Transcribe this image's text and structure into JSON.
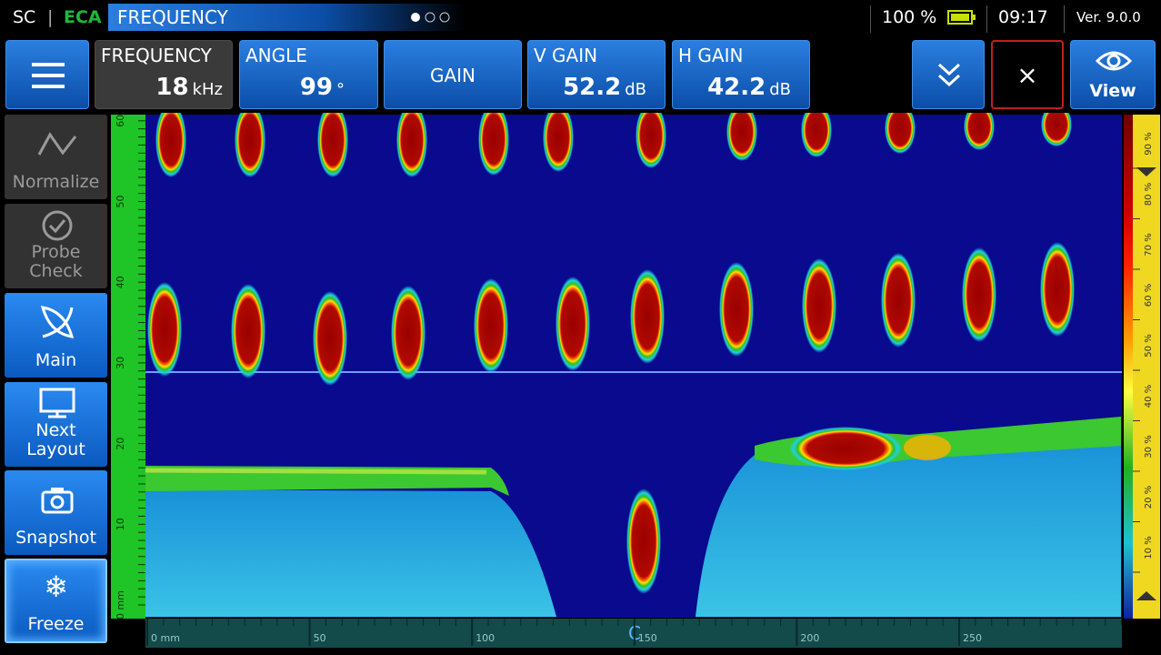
{
  "status_bar": {
    "mode": "SC",
    "separator": "|",
    "technology": "ECA",
    "title": "FREQUENCY",
    "battery": "100 %",
    "time": "09:17",
    "version": "Ver. 9.0.0"
  },
  "toolbar": {
    "frequency": {
      "label": "FREQUENCY",
      "value": "18",
      "unit": "kHz"
    },
    "angle": {
      "label": "ANGLE",
      "value": "99",
      "unit": "°"
    },
    "gain": {
      "label": "GAIN"
    },
    "v_gain": {
      "label": "V GAIN",
      "value": "52.2",
      "unit": "dB"
    },
    "h_gain": {
      "label": "H GAIN",
      "value": "42.2",
      "unit": "dB"
    },
    "close": "×",
    "view": "View"
  },
  "sidebar": [
    "Normalize",
    "Probe Check",
    "Main",
    "Next Layout",
    "Snapshot",
    "Freeze"
  ],
  "scan": {
    "left_axis": [
      "0 mm",
      "10",
      "20",
      "30",
      "40",
      "50",
      "60"
    ],
    "bottom_axis": [
      "0 mm",
      "50",
      "100",
      "150",
      "200",
      "250"
    ],
    "cursor": "C",
    "color_scale": [
      "90 %",
      "80 %",
      "70 %",
      "60 %",
      "50 %",
      "40 %",
      "30 %",
      "20 %",
      "10 %"
    ]
  }
}
